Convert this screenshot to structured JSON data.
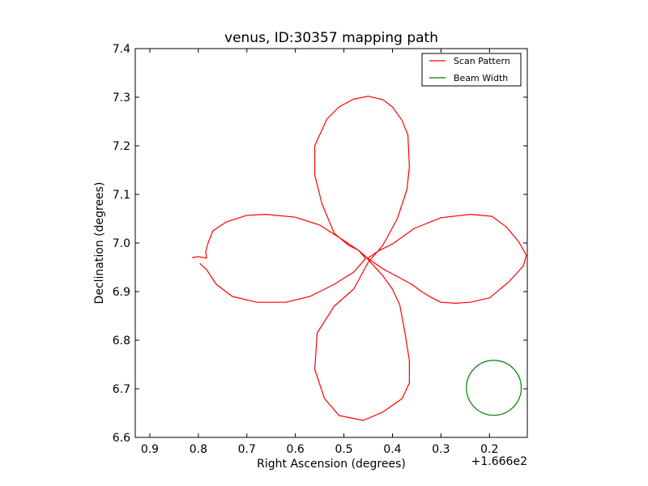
{
  "chart_data": {
    "type": "line",
    "title": "venus, ID:30357 mapping path",
    "xlabel": "Right Ascension (degrees)",
    "ylabel": "Declination (degrees)",
    "x_offset_label": "+1.666e2",
    "xlim": [
      0.93,
      0.122
    ],
    "ylim": [
      6.6,
      7.4
    ],
    "x_ticks": [
      0.9,
      0.8,
      0.7,
      0.6,
      0.5,
      0.4,
      0.3,
      0.2
    ],
    "x_tick_labels": [
      "0.9",
      "0.8",
      "0.7",
      "0.6",
      "0.5",
      "0.4",
      "0.3",
      "0.2"
    ],
    "y_ticks": [
      6.6,
      6.7,
      6.8,
      6.9,
      7.0,
      7.1,
      7.2,
      7.3,
      7.4
    ],
    "y_tick_labels": [
      "6.6",
      "6.7",
      "6.8",
      "6.9",
      "7.0",
      "7.1",
      "7.2",
      "7.3",
      "7.4"
    ],
    "grid": false,
    "legend": {
      "position": "top-right"
    },
    "series": [
      {
        "name": "Scan Pattern",
        "color": "#ff0000",
        "x": [
          0.813,
          0.8,
          0.783,
          0.785,
          0.78,
          0.77,
          0.743,
          0.7,
          0.66,
          0.6,
          0.55,
          0.5,
          0.47,
          0.45,
          0.42,
          0.39,
          0.36,
          0.34,
          0.32,
          0.3,
          0.27,
          0.24,
          0.2,
          0.16,
          0.13,
          0.124,
          0.14,
          0.165,
          0.195,
          0.24,
          0.3,
          0.355,
          0.4,
          0.43,
          0.452,
          0.42,
          0.4,
          0.385,
          0.375,
          0.365,
          0.365,
          0.38,
          0.42,
          0.46,
          0.51,
          0.54,
          0.56,
          0.555,
          0.52,
          0.48,
          0.45,
          0.42,
          0.39,
          0.37,
          0.365,
          0.368,
          0.38,
          0.4,
          0.42,
          0.45,
          0.48,
          0.51,
          0.535,
          0.55,
          0.56,
          0.56,
          0.545,
          0.52,
          0.49,
          0.47,
          0.455,
          0.48,
          0.52,
          0.57,
          0.62,
          0.68,
          0.73,
          0.763,
          0.783,
          0.797
        ],
        "y": [
          6.97,
          6.972,
          6.969,
          6.982,
          7.0,
          7.025,
          7.043,
          7.057,
          7.059,
          7.053,
          7.037,
          7.005,
          6.985,
          6.968,
          6.947,
          6.931,
          6.915,
          6.9,
          6.888,
          6.878,
          6.876,
          6.878,
          6.887,
          6.92,
          6.953,
          6.975,
          7.003,
          7.033,
          7.055,
          7.059,
          7.052,
          7.03,
          6.998,
          6.983,
          6.968,
          6.933,
          6.905,
          6.873,
          6.82,
          6.758,
          6.712,
          6.68,
          6.652,
          6.635,
          6.645,
          6.68,
          6.74,
          6.815,
          6.87,
          6.905,
          6.96,
          6.995,
          7.05,
          7.11,
          7.157,
          7.222,
          7.252,
          7.28,
          7.295,
          7.302,
          7.296,
          7.28,
          7.255,
          7.222,
          7.2,
          7.14,
          7.08,
          7.02,
          6.995,
          6.985,
          6.968,
          6.94,
          6.915,
          6.89,
          6.878,
          6.878,
          6.89,
          6.915,
          6.945,
          6.958
        ]
      }
    ],
    "beam": {
      "name": "Beam Width",
      "color": "#008000",
      "center_x": 0.191,
      "center_y": 6.702,
      "radius": 0.0565
    }
  }
}
